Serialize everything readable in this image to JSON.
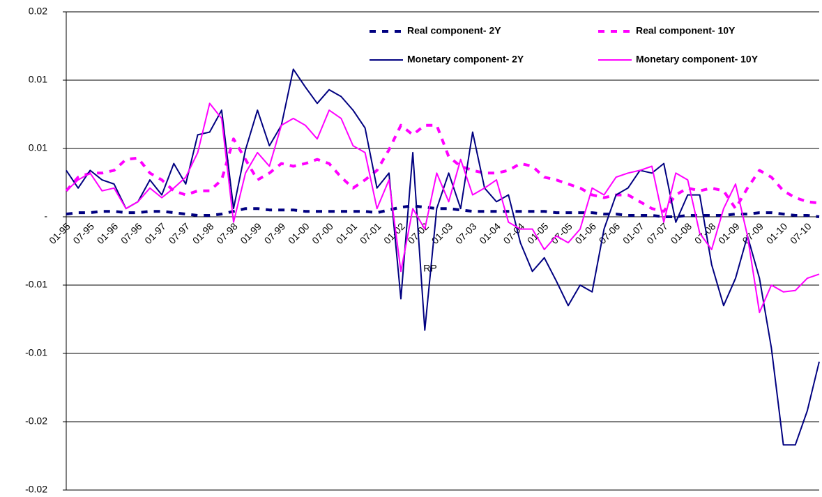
{
  "chart_data": {
    "type": "line",
    "annotation": "RP",
    "categories": [
      "01-95",
      null,
      "07-95",
      null,
      "01-96",
      null,
      "07-96",
      null,
      "01-97",
      null,
      "07-97",
      null,
      "01-98",
      null,
      "07-98",
      null,
      "01-99",
      null,
      "07-99",
      null,
      "01-00",
      null,
      "07-00",
      null,
      "01-01",
      null,
      "07-01",
      null,
      "01-02",
      null,
      "07-02",
      null,
      "01-03",
      null,
      "07-03",
      null,
      "01-04",
      null,
      "07-04",
      null,
      "01-05",
      null,
      "07-05",
      null,
      "01-06",
      null,
      "07-06",
      null,
      "01-07",
      null,
      "07-07",
      null,
      "01-08",
      null,
      "07-08",
      null,
      "01-09",
      null,
      "07-09",
      null,
      "01-10",
      null,
      "07-10",
      null
    ],
    "ylim": [
      -0.02,
      0.015
    ],
    "yticks": [
      -0.02,
      {
        "value": -0.015,
        "label": "-0.02"
      },
      -0.01,
      {
        "value": -0.005,
        "label": "-0.01"
      },
      {
        "value": 0,
        "label": "-"
      },
      {
        "value": 0.005,
        "label": "0.01"
      },
      0.01,
      {
        "value": 0.015,
        "label": "0.02"
      }
    ],
    "grid": true,
    "legend": "top-right",
    "series": [
      {
        "name": "Real component- 2Y",
        "color": "#000080",
        "line_style": "dashed",
        "values": [
          0.0002,
          0.0003,
          0.0003,
          0.0004,
          0.0004,
          0.0003,
          0.0003,
          0.0004,
          0.0004,
          0.0003,
          0.0002,
          0.0001,
          0.0001,
          0.0002,
          0.0004,
          0.0006,
          0.0006,
          0.0005,
          0.0005,
          0.0005,
          0.0004,
          0.0004,
          0.0004,
          0.0004,
          0.0004,
          0.0004,
          0.0003,
          0.0005,
          0.0007,
          0.0008,
          0.0007,
          0.0006,
          0.0006,
          0.0005,
          0.0004,
          0.0004,
          0.0004,
          0.0004,
          0.0004,
          0.0004,
          0.0004,
          0.0003,
          0.0003,
          0.0003,
          0.0003,
          0.0002,
          0.0002,
          0.0001,
          0.0001,
          0.0001,
          0,
          0,
          0.0001,
          0.0001,
          0.0001,
          0.0001,
          0.0002,
          0.0002,
          0.0003,
          0.0003,
          0.0002,
          0.0001,
          0.0001,
          0
        ]
      },
      {
        "name": "Real component- 10Y",
        "color": "#ff00ff",
        "line_style": "dashed",
        "values": [
          0.0019,
          0.0029,
          0.0032,
          0.0032,
          0.0034,
          0.0042,
          0.0043,
          0.0032,
          0.0027,
          0.0019,
          0.0016,
          0.0019,
          0.0019,
          0.0027,
          0.0057,
          0.0042,
          0.0027,
          0.0032,
          0.0039,
          0.0037,
          0.0039,
          0.0042,
          0.0039,
          0.0029,
          0.0021,
          0.0027,
          0.0034,
          0.0049,
          0.0067,
          0.006,
          0.0067,
          0.0067,
          0.0044,
          0.0037,
          0.0034,
          0.0032,
          0.0032,
          0.0034,
          0.0039,
          0.0037,
          0.0029,
          0.0027,
          0.0024,
          0.0021,
          0.0016,
          0.0014,
          0.0016,
          0.0016,
          0.0011,
          0.0006,
          0.0004,
          0.0016,
          0.0021,
          0.0019,
          0.0021,
          0.0019,
          0.0006,
          0.0021,
          0.0034,
          0.0029,
          0.0019,
          0.0014,
          0.0011,
          0.001
        ]
      },
      {
        "name": "Monetary component- 2Y",
        "color": "#000080",
        "line_style": "solid",
        "values": [
          0.0034,
          0.0021,
          0.0034,
          0.0027,
          0.0024,
          0.0006,
          0.0011,
          0.0027,
          0.0016,
          0.0039,
          0.0024,
          0.006,
          0.0062,
          0.0078,
          0.0006,
          0.0049,
          0.0078,
          0.0052,
          0.0067,
          0.0108,
          0.0095,
          0.0083,
          0.0093,
          0.0088,
          0.0078,
          0.0065,
          0.0021,
          0.0032,
          -0.006,
          0.0047,
          -0.0083,
          0.0006,
          0.0032,
          0.0006,
          0.0062,
          0.0021,
          0.0011,
          0.0016,
          -0.0019,
          -0.004,
          -0.003,
          -0.0047,
          -0.0065,
          -0.005,
          -0.0055,
          -0.0009,
          0.0016,
          0.0021,
          0.0034,
          0.0032,
          0.0039,
          -0.0004,
          0.0016,
          0.0016,
          -0.0035,
          -0.0065,
          -0.0045,
          -0.0014,
          -0.0045,
          -0.0096,
          -0.0167,
          -0.0167,
          -0.0142,
          -0.0106
        ]
      },
      {
        "name": "Monetary component- 10Y",
        "color": "#ff00ff",
        "line_style": "solid",
        "values": [
          0.0019,
          0.0027,
          0.0032,
          0.0019,
          0.0021,
          0.0006,
          0.0011,
          0.0021,
          0.0014,
          0.0021,
          0.0029,
          0.0047,
          0.0083,
          0.0072,
          -0.0004,
          0.0032,
          0.0047,
          0.0037,
          0.0067,
          0.0072,
          0.0067,
          0.0057,
          0.0078,
          0.0072,
          0.0052,
          0.0047,
          0.0006,
          0.0027,
          -0.004,
          0.0006,
          -0.0009,
          0.0032,
          0.0011,
          0.0042,
          0.0016,
          0.0021,
          0.0027,
          -0.0004,
          -0.0009,
          -0.0009,
          -0.0024,
          -0.0014,
          -0.0019,
          -0.0009,
          0.0021,
          0.0016,
          0.0029,
          0.0032,
          0.0034,
          0.0037,
          -0.0004,
          0.0032,
          0.0027,
          -0.0012,
          -0.0024,
          0.0006,
          0.0024,
          -0.0014,
          -0.007,
          -0.005,
          -0.0055,
          -0.0054,
          -0.0045,
          -0.0042
        ]
      }
    ]
  }
}
